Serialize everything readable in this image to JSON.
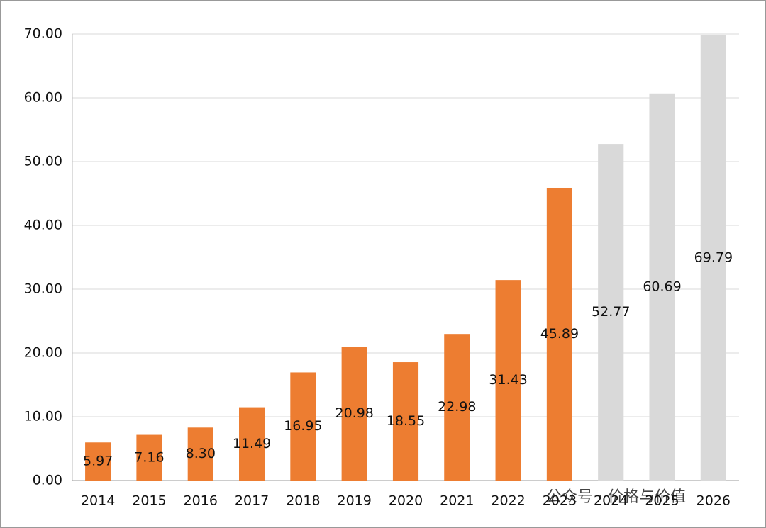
{
  "chart_data": {
    "type": "bar",
    "categories": [
      "2014",
      "2015",
      "2016",
      "2017",
      "2018",
      "2019",
      "2020",
      "2021",
      "2022",
      "2023",
      "2024",
      "2025",
      "2026"
    ],
    "values": [
      5.97,
      7.16,
      8.3,
      11.49,
      16.95,
      20.98,
      18.55,
      22.98,
      31.43,
      45.89,
      52.77,
      60.69,
      69.79
    ],
    "value_labels": [
      "5.97",
      "7.16",
      "8.30",
      "11.49",
      "16.95",
      "20.98",
      "18.55",
      "22.98",
      "31.43",
      "45.89",
      "52.77",
      "60.69",
      "69.79"
    ],
    "colors": [
      "#ed7d31",
      "#ed7d31",
      "#ed7d31",
      "#ed7d31",
      "#ed7d31",
      "#ed7d31",
      "#ed7d31",
      "#ed7d31",
      "#ed7d31",
      "#ed7d31",
      "#d9d9d9",
      "#d9d9d9",
      "#d9d9d9"
    ],
    "ylim": [
      0,
      70
    ],
    "yticks": [
      {
        "value": 0,
        "label": "0.00"
      },
      {
        "value": 10,
        "label": "10.00"
      },
      {
        "value": 20,
        "label": "20.00"
      },
      {
        "value": 30,
        "label": "30.00"
      },
      {
        "value": 40,
        "label": "40.00"
      },
      {
        "value": 50,
        "label": "50.00"
      },
      {
        "value": 60,
        "label": "60.00"
      },
      {
        "value": 70,
        "label": "70.00"
      }
    ],
    "grid": true,
    "watermark": "公众号 · 价格与价值"
  }
}
